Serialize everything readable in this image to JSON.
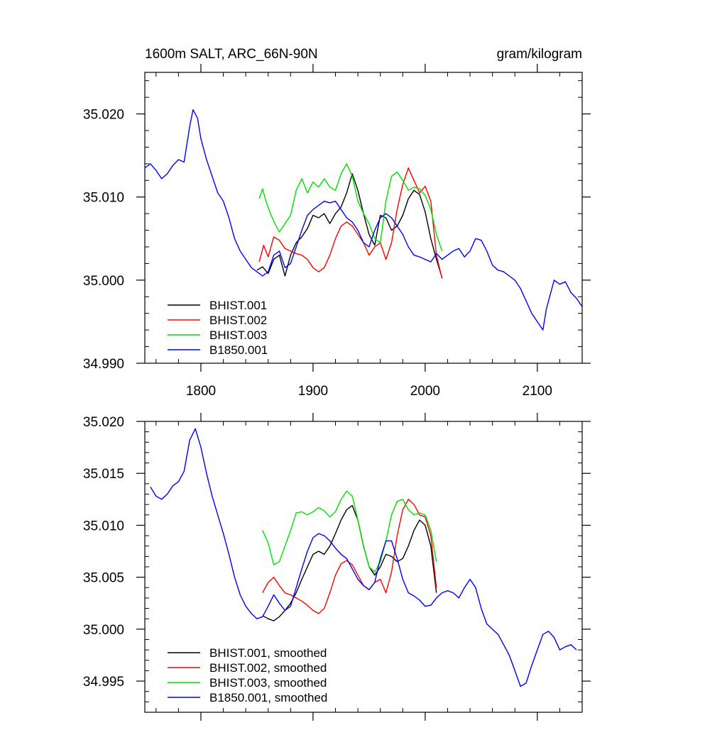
{
  "figure": {
    "title_left": "1600m SALT, ARC_66N-90N",
    "title_right": "gram/kilogram"
  },
  "chart_data": [
    {
      "type": "line",
      "title": "1600m SALT, ARC_66N-90N",
      "units": "gram/kilogram",
      "xlim": [
        1750,
        2140
      ],
      "ylim": [
        34.99,
        35.025
      ],
      "x_ticks": [
        1800,
        1900,
        2000,
        2100
      ],
      "x_tick_labels": [
        "1800",
        "1900",
        "2000",
        "2100"
      ],
      "y_ticks": [
        34.99,
        35.0,
        35.01,
        35.02
      ],
      "y_tick_labels": [
        "34.990",
        "35.000",
        "35.010",
        "35.020"
      ],
      "legend_position": "bottom-left",
      "series": [
        {
          "name": "BHIST.001",
          "color": "#000000",
          "x": [
            1850,
            1855,
            1860,
            1865,
            1870,
            1875,
            1880,
            1885,
            1890,
            1895,
            1900,
            1905,
            1910,
            1915,
            1920,
            1925,
            1930,
            1935,
            1940,
            1945,
            1950,
            1955,
            1960,
            1965,
            1970,
            1975,
            1980,
            1985,
            1990,
            1995,
            2000,
            2005,
            2010,
            2015
          ],
          "y": [
            35.0012,
            35.0016,
            35.0008,
            35.0025,
            35.003,
            35.0005,
            35.003,
            35.0045,
            35.0052,
            35.0062,
            35.0078,
            35.0075,
            35.008,
            35.0068,
            35.008,
            35.0088,
            35.0105,
            35.0128,
            35.0108,
            35.008,
            35.0055,
            35.0042,
            35.0078,
            35.0075,
            35.006,
            35.0065,
            35.0078,
            35.0098,
            35.0108,
            35.0103,
            35.0082,
            35.005,
            35.0025,
            35.0003
          ]
        },
        {
          "name": "BHIST.002",
          "color": "#ff0000",
          "x": [
            1852,
            1856,
            1860,
            1865,
            1870,
            1875,
            1880,
            1885,
            1890,
            1895,
            1900,
            1905,
            1910,
            1915,
            1920,
            1925,
            1930,
            1935,
            1940,
            1945,
            1950,
            1955,
            1960,
            1965,
            1970,
            1975,
            1980,
            1985,
            1990,
            1995,
            2000,
            2005,
            2010,
            2015
          ],
          "y": [
            35.0022,
            35.0042,
            35.0028,
            35.0052,
            35.0048,
            35.0038,
            35.0035,
            35.0032,
            35.003,
            35.0025,
            35.0015,
            35.001,
            35.0015,
            35.003,
            35.005,
            35.0065,
            35.007,
            35.0065,
            35.0055,
            35.0045,
            35.003,
            35.004,
            35.0045,
            35.0025,
            35.0045,
            35.0085,
            35.0115,
            35.0135,
            35.012,
            35.0105,
            35.0113,
            35.0095,
            35.003,
            35.0002
          ]
        },
        {
          "name": "BHIST.003",
          "color": "#00e000",
          "x": [
            1852,
            1855,
            1858,
            1862,
            1866,
            1870,
            1875,
            1880,
            1885,
            1890,
            1895,
            1900,
            1905,
            1910,
            1915,
            1920,
            1925,
            1930,
            1935,
            1940,
            1945,
            1950,
            1955,
            1960,
            1965,
            1970,
            1975,
            1980,
            1985,
            1990,
            1995,
            2000,
            2005,
            2010,
            2015
          ],
          "y": [
            35.0098,
            35.011,
            35.0095,
            35.008,
            35.0068,
            35.0058,
            35.0068,
            35.0078,
            35.0108,
            35.0122,
            35.0105,
            35.0118,
            35.0112,
            35.0122,
            35.0112,
            35.0108,
            35.0128,
            35.014,
            35.0125,
            35.0095,
            35.008,
            35.0068,
            35.005,
            35.0045,
            35.0095,
            35.0125,
            35.013,
            35.012,
            35.0108,
            35.0112,
            35.011,
            35.0102,
            35.0085,
            35.0055,
            35.0035
          ]
        },
        {
          "name": "B1850.001",
          "color": "#0000ff",
          "x": [
            1750,
            1755,
            1760,
            1765,
            1770,
            1775,
            1780,
            1785,
            1790,
            1793,
            1797,
            1800,
            1805,
            1810,
            1815,
            1820,
            1825,
            1830,
            1835,
            1840,
            1845,
            1850,
            1855,
            1860,
            1865,
            1870,
            1875,
            1880,
            1885,
            1890,
            1895,
            1900,
            1905,
            1910,
            1915,
            1920,
            1925,
            1930,
            1935,
            1940,
            1945,
            1950,
            1955,
            1960,
            1965,
            1970,
            1975,
            1980,
            1985,
            1990,
            1995,
            2000,
            2005,
            2010,
            2015,
            2020,
            2025,
            2030,
            2035,
            2040,
            2045,
            2050,
            2055,
            2060,
            2065,
            2070,
            2075,
            2080,
            2085,
            2090,
            2095,
            2100,
            2105,
            2108,
            2112,
            2115,
            2120,
            2125,
            2130,
            2135,
            2140
          ],
          "y": [
            35.0135,
            35.014,
            35.0132,
            35.0122,
            35.0128,
            35.0138,
            35.0145,
            35.0142,
            35.0185,
            35.0205,
            35.0195,
            35.017,
            35.0145,
            35.0125,
            35.0105,
            35.0095,
            35.0075,
            35.005,
            35.0035,
            35.0025,
            35.0015,
            35.001,
            35.0005,
            35.001,
            35.003,
            35.0035,
            35.0015,
            35.002,
            35.004,
            35.006,
            35.0078,
            35.0085,
            35.009,
            35.0095,
            35.0093,
            35.0095,
            35.0085,
            35.0075,
            35.007,
            35.006,
            35.0045,
            35.004,
            35.006,
            35.0075,
            35.008,
            35.0075,
            35.0065,
            35.0055,
            35.004,
            35.003,
            35.0028,
            35.0025,
            35.0022,
            35.0032,
            35.0025,
            35.003,
            35.0035,
            35.0038,
            35.0028,
            35.0035,
            35.005,
            35.0048,
            35.0035,
            35.0018,
            35.0012,
            35.001,
            35.0005,
            35.0,
            34.999,
            34.9975,
            34.996,
            34.995,
            34.994,
            34.9965,
            34.9985,
            35.0,
            34.9995,
            34.9998,
            34.9985,
            34.9978,
            34.9968
          ]
        }
      ]
    },
    {
      "type": "line",
      "xlim": [
        1750,
        2140
      ],
      "ylim": [
        34.992,
        35.02
      ],
      "x_ticks": [
        1800,
        1900,
        2000,
        2100
      ],
      "x_tick_labels": [],
      "y_ticks": [
        34.995,
        35.0,
        35.005,
        35.01,
        35.015,
        35.02
      ],
      "y_tick_labels": [
        "34.995",
        "35.000",
        "35.005",
        "35.010",
        "35.015",
        "35.020"
      ],
      "legend_position": "bottom-left",
      "series": [
        {
          "name": "BHIST.001, smoothed",
          "color": "#000000",
          "x": [
            1855,
            1860,
            1865,
            1870,
            1875,
            1880,
            1885,
            1890,
            1895,
            1900,
            1905,
            1910,
            1915,
            1920,
            1925,
            1930,
            1935,
            1940,
            1945,
            1950,
            1955,
            1960,
            1965,
            1970,
            1975,
            1980,
            1985,
            1990,
            1995,
            2000,
            2005,
            2010
          ],
          "y": [
            35.0013,
            35.001,
            35.0008,
            35.0012,
            35.0018,
            35.0025,
            35.0035,
            35.0048,
            35.006,
            35.0072,
            35.0075,
            35.0072,
            35.008,
            35.0092,
            35.0105,
            35.0115,
            35.0119,
            35.0105,
            35.008,
            35.006,
            35.0052,
            35.006,
            35.0072,
            35.007,
            35.0065,
            35.0068,
            35.008,
            35.0095,
            35.0105,
            35.01,
            35.008,
            35.0035
          ]
        },
        {
          "name": "BHIST.002, smoothed",
          "color": "#ff0000",
          "x": [
            1855,
            1860,
            1865,
            1870,
            1875,
            1880,
            1885,
            1890,
            1895,
            1900,
            1905,
            1910,
            1915,
            1920,
            1925,
            1930,
            1935,
            1940,
            1945,
            1950,
            1955,
            1960,
            1965,
            1970,
            1975,
            1980,
            1985,
            1990,
            1995,
            2000,
            2005,
            2010
          ],
          "y": [
            35.0035,
            35.0045,
            35.005,
            35.0042,
            35.0035,
            35.0033,
            35.003,
            35.0027,
            35.0023,
            35.0018,
            35.0015,
            35.002,
            35.0035,
            35.0052,
            35.0063,
            35.0066,
            35.0062,
            35.0052,
            35.0042,
            35.0038,
            35.0045,
            35.0048,
            35.0035,
            35.0055,
            35.009,
            35.0115,
            35.0125,
            35.012,
            35.011,
            35.0108,
            35.009,
            35.004
          ]
        },
        {
          "name": "BHIST.003, smoothed",
          "color": "#00e000",
          "x": [
            1855,
            1860,
            1865,
            1870,
            1875,
            1880,
            1885,
            1890,
            1895,
            1900,
            1905,
            1910,
            1915,
            1920,
            1925,
            1930,
            1935,
            1940,
            1945,
            1950,
            1955,
            1960,
            1965,
            1970,
            1975,
            1980,
            1985,
            1990,
            1995,
            2000,
            2005,
            2010
          ],
          "y": [
            35.0095,
            35.0083,
            35.0062,
            35.0065,
            35.008,
            35.0095,
            35.0112,
            35.0113,
            35.011,
            35.0113,
            35.0117,
            35.0114,
            35.0108,
            35.0113,
            35.0125,
            35.0133,
            35.0128,
            35.0105,
            35.008,
            35.006,
            35.0055,
            35.0065,
            35.0085,
            35.011,
            35.0123,
            35.0125,
            35.0115,
            35.011,
            35.0112,
            35.011,
            35.0095,
            35.0065
          ]
        },
        {
          "name": "B1850.001, smoothed",
          "color": "#0000ff",
          "x": [
            1755,
            1760,
            1765,
            1770,
            1775,
            1780,
            1785,
            1790,
            1795,
            1800,
            1805,
            1810,
            1815,
            1820,
            1825,
            1830,
            1835,
            1840,
            1845,
            1850,
            1855,
            1860,
            1865,
            1870,
            1875,
            1880,
            1885,
            1890,
            1895,
            1900,
            1905,
            1910,
            1915,
            1920,
            1925,
            1930,
            1935,
            1940,
            1945,
            1950,
            1955,
            1960,
            1965,
            1970,
            1975,
            1980,
            1985,
            1990,
            1995,
            2000,
            2005,
            2010,
            2015,
            2020,
            2025,
            2030,
            2035,
            2040,
            2045,
            2050,
            2055,
            2060,
            2065,
            2070,
            2075,
            2080,
            2085,
            2090,
            2095,
            2100,
            2105,
            2110,
            2115,
            2120,
            2125,
            2130,
            2135
          ],
          "y": [
            35.0137,
            35.0128,
            35.0125,
            35.013,
            35.0138,
            35.0142,
            35.0152,
            35.0182,
            35.0193,
            35.0175,
            35.015,
            35.0128,
            35.011,
            35.0092,
            35.0072,
            35.005,
            35.0033,
            35.0022,
            35.0015,
            35.001,
            35.0012,
            35.0022,
            35.0033,
            35.0025,
            35.0018,
            35.0022,
            35.004,
            35.0058,
            35.0075,
            35.0088,
            35.0092,
            35.009,
            35.0085,
            35.0078,
            35.0072,
            35.0068,
            35.0058,
            35.0048,
            35.0042,
            35.0038,
            35.0045,
            35.0068,
            35.0085,
            35.0085,
            35.0068,
            35.0048,
            35.0035,
            35.0032,
            35.0028,
            35.0022,
            35.0023,
            35.003,
            35.0035,
            35.0037,
            35.0035,
            35.003,
            35.004,
            35.0048,
            35.004,
            35.002,
            35.0005,
            35.0,
            34.9995,
            34.9985,
            34.9975,
            34.996,
            34.9945,
            34.9948,
            34.9965,
            34.998,
            34.9995,
            34.9998,
            34.9992,
            34.998,
            34.9983,
            34.9985,
            34.998
          ]
        }
      ]
    }
  ]
}
